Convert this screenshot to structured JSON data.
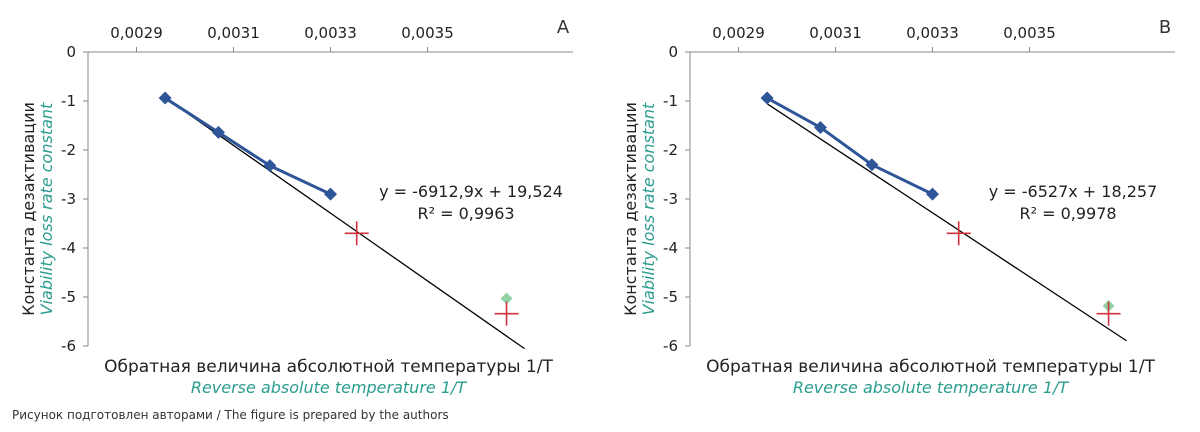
{
  "footer": "Рисунок подготовлен авторами / The figure is prepared by the authors",
  "colors": {
    "series": "#2e5597",
    "fit": "#000000",
    "cross": "#d0333f",
    "extra": "#92d2a6",
    "english": "#2a9d8f"
  },
  "chart_data": [
    {
      "type": "scatter",
      "panel_label": "A",
      "title": "",
      "xlabel": "Обратная величина абсолютной температуры 1/T",
      "xlabel_en": "Reverse absolute temperature 1/T",
      "ylabel": "Константа дезактивации",
      "ylabel_en": "Viability loss rate constant",
      "xlim": [
        0.0028,
        0.0038
      ],
      "ylim": [
        -6,
        0
      ],
      "xticks": [
        0.0029,
        0.0031,
        0.0033,
        0.0035
      ],
      "xtick_labels": [
        "0,0029",
        "0,0031",
        "0,0033",
        "0,0035"
      ],
      "yticks": [
        0,
        -1,
        -2,
        -3,
        -4,
        -5,
        -6
      ],
      "ytick_labels": [
        "0",
        "-1",
        "-2",
        "-3",
        "-4",
        "-5",
        "-6"
      ],
      "x_axis_position": "top",
      "grid": false,
      "series": [
        {
          "marker": "diamond",
          "x": [
            0.002959,
            0.003069,
            0.003175,
            0.0033
          ],
          "y": [
            -0.94,
            -1.64,
            -2.32,
            -2.9
          ]
        }
      ],
      "fit_line": {
        "slope": -6912.9,
        "intercept": 19.524,
        "x": [
          0.00296,
          0.0037
        ]
      },
      "cross_points": {
        "x": [
          0.003354,
          0.003663
        ],
        "y": [
          -3.7,
          -5.34
        ]
      },
      "extra_points": {
        "x": [
          0.003663
        ],
        "y": [
          -5.03
        ]
      },
      "equation": "y = -6912,9x + 19,524",
      "r2_label": "R² = 0,9963"
    },
    {
      "type": "scatter",
      "panel_label": "B",
      "title": "",
      "xlabel": "Обратная величина абсолютной температуры 1/T",
      "xlabel_en": "Reverse absolute temperature 1/T",
      "ylabel": "Константа дезактивации",
      "ylabel_en": "Viability loss rate constant",
      "xlim": [
        0.0028,
        0.0038
      ],
      "ylim": [
        -6,
        0
      ],
      "xticks": [
        0.0029,
        0.0031,
        0.0033,
        0.0035
      ],
      "xtick_labels": [
        "0,0029",
        "0,0031",
        "0,0033",
        "0,0035"
      ],
      "yticks": [
        0,
        -1,
        -2,
        -3,
        -4,
        -5,
        -6
      ],
      "ytick_labels": [
        "0",
        "-1",
        "-2",
        "-3",
        "-4",
        "-5",
        "-6"
      ],
      "x_axis_position": "top",
      "grid": false,
      "series": [
        {
          "marker": "diamond",
          "x": [
            0.002959,
            0.003069,
            0.003175,
            0.0033
          ],
          "y": [
            -0.94,
            -1.54,
            -2.3,
            -2.9
          ]
        }
      ],
      "fit_line": {
        "slope": -6527,
        "intercept": 18.257,
        "x": [
          0.00296,
          0.0037
        ]
      },
      "cross_points": {
        "x": [
          0.003354,
          0.003663
        ],
        "y": [
          -3.7,
          -5.34
        ]
      },
      "extra_points": {
        "x": [
          0.003663
        ],
        "y": [
          -5.18
        ]
      },
      "equation": "y = -6527x + 18,257",
      "r2_label": "R² = 0,9978"
    }
  ]
}
